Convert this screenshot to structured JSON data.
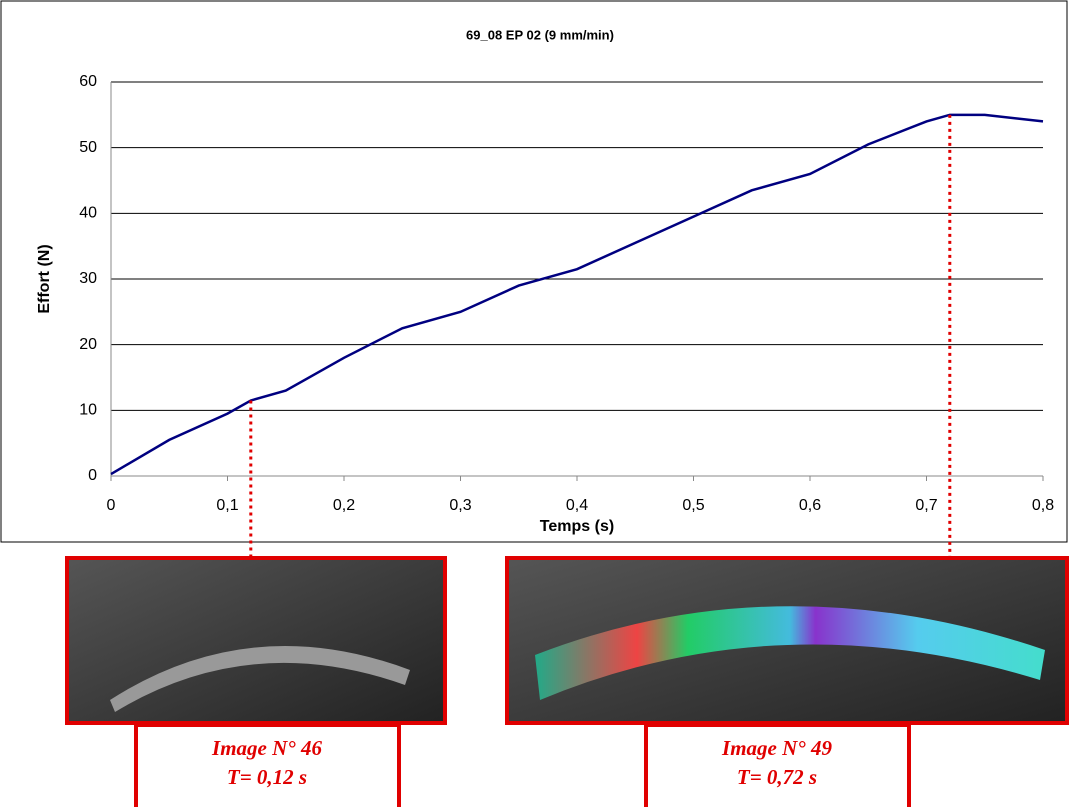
{
  "chart_data": {
    "type": "line",
    "title": "69_08 EP 02 (9 mm/min)",
    "x_label": "Temps (s)",
    "y_label": "Effort (N)",
    "x": [
      0,
      0.05,
      0.1,
      0.12,
      0.15,
      0.2,
      0.25,
      0.3,
      0.35,
      0.4,
      0.45,
      0.5,
      0.55,
      0.6,
      0.65,
      0.7,
      0.72,
      0.75,
      0.8
    ],
    "series": [
      {
        "name": "Effort",
        "color": "#000080",
        "values": [
          0.3,
          5.5,
          9.5,
          11.5,
          13,
          18,
          22.5,
          25,
          29,
          31.5,
          35.5,
          39.5,
          43.5,
          46,
          50.5,
          54,
          55,
          55,
          54
        ]
      }
    ],
    "xlim": [
      0,
      0.8
    ],
    "ylim": [
      0,
      60
    ],
    "xticks": [
      0,
      {
        "value": 0.1,
        "label": "0,1"
      },
      {
        "value": 0.2,
        "label": "0,2"
      },
      {
        "value": 0.3,
        "label": "0,3"
      },
      {
        "value": 0.4,
        "label": "0,4"
      },
      {
        "value": 0.5,
        "label": "0,5"
      },
      {
        "value": 0.6,
        "label": "0,6"
      },
      {
        "value": 0.7,
        "label": "0,7"
      },
      {
        "value": 0.8,
        "label": "0,8"
      }
    ],
    "yticks": [
      0,
      10,
      20,
      30,
      40,
      50,
      60
    ],
    "grid": true,
    "markers": [
      {
        "x": 0.12,
        "image": "Image N° 46",
        "time": "T= 0,12 s"
      },
      {
        "x": 0.72,
        "image": "Image N° 49",
        "time": "T= 0,72 s"
      }
    ]
  }
}
